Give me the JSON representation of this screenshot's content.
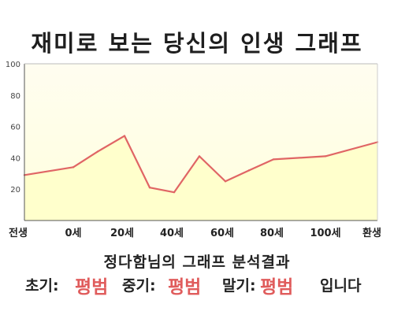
{
  "title": "재미로 보는 당신의 인생 그래프",
  "subtitle": "정다함님의 그래프 분석결과",
  "summary": {
    "early_label": "초기:",
    "early_value": "평범",
    "mid_label": "중기:",
    "mid_value": "평범",
    "late_label": "말기:",
    "late_value": "평범",
    "ending": "입니다"
  },
  "colors": {
    "line": "#e06565",
    "fill": "#ffffcc",
    "plot_bg": "#fffff0",
    "highlight": "#e05c5c"
  },
  "chart_data": {
    "type": "area",
    "title": "재미로 보는 당신의 인생 그래프",
    "xlabel": "",
    "ylabel": "",
    "ylim": [
      0,
      100
    ],
    "yticks": [
      20,
      40,
      60,
      80,
      100
    ],
    "grid": false,
    "x_labels": [
      "전생",
      "0세",
      "20세",
      "40세",
      "60세",
      "80세",
      "100세",
      "환생"
    ],
    "series": [
      {
        "points": [
          {
            "x": "전생",
            "y": 29
          },
          {
            "x": "0세",
            "y": 34
          },
          {
            "x": "10세",
            "y": 44
          },
          {
            "x": "20세",
            "y": 54
          },
          {
            "x": "30세",
            "y": 21
          },
          {
            "x": "40세",
            "y": 18
          },
          {
            "x": "50세",
            "y": 41
          },
          {
            "x": "60세",
            "y": 25
          },
          {
            "x": "70세",
            "y": 32
          },
          {
            "x": "80세",
            "y": 39
          },
          {
            "x": "100세",
            "y": 41
          },
          {
            "x": "환생",
            "y": 50
          }
        ]
      }
    ]
  }
}
